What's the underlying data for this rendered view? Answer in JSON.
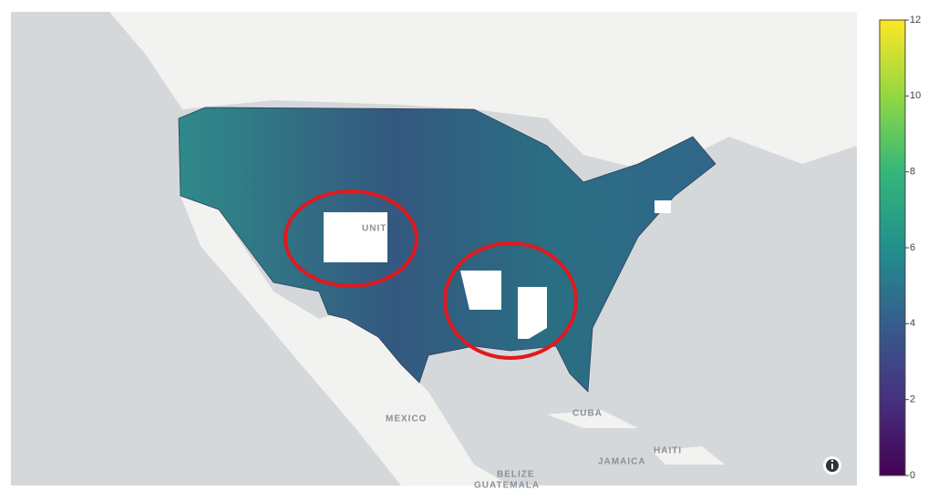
{
  "map": {
    "places": [
      "UNIT",
      "MEXICO",
      "CUBA",
      "JAMAICA",
      "HAITI",
      "BELIZE",
      "GUATEMALA"
    ]
  },
  "colorbar": {
    "lim": [
      0,
      12
    ],
    "ticks": [
      0,
      2,
      4,
      6,
      8,
      10,
      12
    ]
  }
}
